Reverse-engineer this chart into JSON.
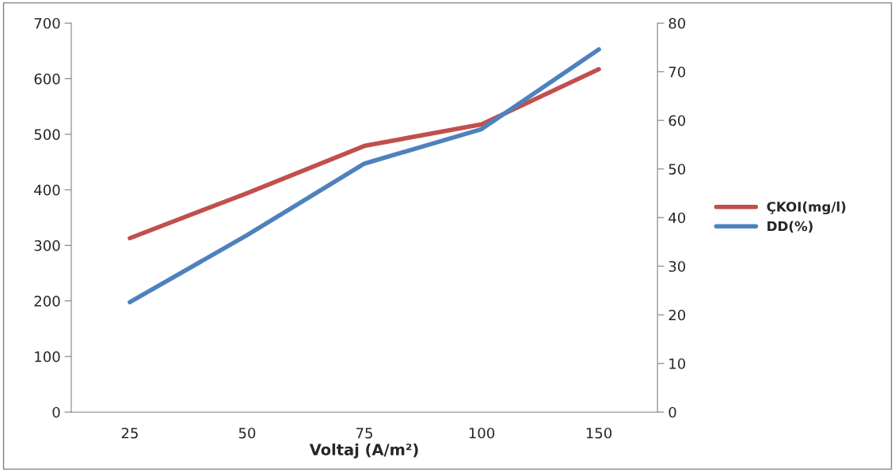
{
  "chart_data": {
    "type": "line",
    "xlabel": "Voltaj (A/m²)",
    "categories": [
      "25",
      "50",
      "75",
      "100",
      "150"
    ],
    "series": [
      {
        "name": "ÇKOI(mg/l)",
        "color": "#c0504d",
        "values": [
          313,
          394,
          479,
          518,
          617
        ]
      },
      {
        "name": "DD(%)",
        "color": "#4f81bd",
        "axis": "y2",
        "values": [
          22.6,
          36.4,
          51.1,
          58.2,
          74.6
        ]
      }
    ],
    "ylim": [
      0,
      700
    ],
    "yticks": [
      0,
      100,
      200,
      300,
      400,
      500,
      600,
      700
    ],
    "y2lim": [
      0,
      80
    ],
    "y2ticks": [
      0,
      10,
      20,
      30,
      40,
      50,
      60,
      70,
      80
    ],
    "grid": false,
    "legend": "right",
    "marker": "none",
    "line_style": "solid"
  }
}
